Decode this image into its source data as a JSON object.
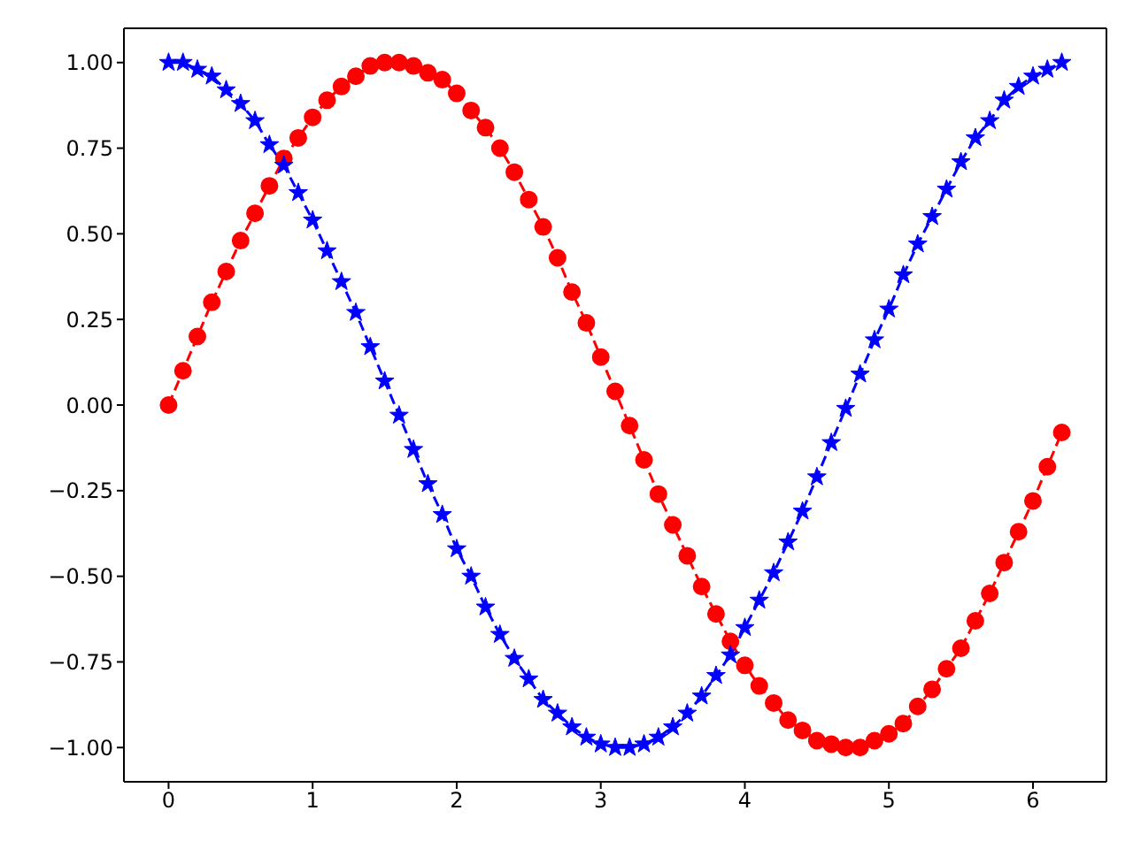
{
  "chart_data": {
    "type": "line",
    "x": [
      0,
      0.1,
      0.2,
      0.3,
      0.4,
      0.5,
      0.6,
      0.7,
      0.8,
      0.9,
      1.0,
      1.1,
      1.2,
      1.3,
      1.4,
      1.5,
      1.6,
      1.7,
      1.8,
      1.9,
      2.0,
      2.1,
      2.2,
      2.3,
      2.4,
      2.5,
      2.6,
      2.7,
      2.8,
      2.9,
      3.0,
      3.1,
      3.2,
      3.3,
      3.4,
      3.5,
      3.6,
      3.7,
      3.8,
      3.9,
      4.0,
      4.1,
      4.2,
      4.3,
      4.4,
      4.5,
      4.6,
      4.7,
      4.8,
      4.9,
      5.0,
      5.1,
      5.2,
      5.3,
      5.4,
      5.5,
      5.6,
      5.7,
      5.8,
      5.9,
      6.0,
      6.1,
      6.2
    ],
    "series": [
      {
        "color": "#ff0000",
        "marker": "circle",
        "line_style": "dashed",
        "values": [
          0,
          0.1,
          0.2,
          0.3,
          0.39,
          0.48,
          0.56,
          0.64,
          0.72,
          0.78,
          0.84,
          0.89,
          0.93,
          0.96,
          0.99,
          1.0,
          1.0,
          0.99,
          0.97,
          0.95,
          0.91,
          0.86,
          0.81,
          0.75,
          0.68,
          0.6,
          0.52,
          0.43,
          0.33,
          0.24,
          0.14,
          0.04,
          -0.06,
          -0.16,
          -0.26,
          -0.35,
          -0.44,
          -0.53,
          -0.61,
          -0.69,
          -0.76,
          -0.82,
          -0.87,
          -0.92,
          -0.95,
          -0.98,
          -0.99,
          -1.0,
          -1.0,
          -0.98,
          -0.96,
          -0.93,
          -0.88,
          -0.83,
          -0.77,
          -0.71,
          -0.63,
          -0.55,
          -0.46,
          -0.37,
          -0.28,
          -0.18,
          -0.08
        ]
      },
      {
        "color": "#0000ff",
        "marker": "star",
        "line_style": "dashed",
        "values": [
          1.0,
          1.0,
          0.98,
          0.96,
          0.92,
          0.88,
          0.83,
          0.76,
          0.7,
          0.62,
          0.54,
          0.45,
          0.36,
          0.27,
          0.17,
          0.07,
          -0.03,
          -0.13,
          -0.23,
          -0.32,
          -0.42,
          -0.5,
          -0.59,
          -0.67,
          -0.74,
          -0.8,
          -0.86,
          -0.9,
          -0.94,
          -0.97,
          -0.99,
          -1.0,
          -1.0,
          -0.99,
          -0.97,
          -0.94,
          -0.9,
          -0.85,
          -0.79,
          -0.73,
          -0.65,
          -0.57,
          -0.49,
          -0.4,
          -0.31,
          -0.21,
          -0.11,
          -0.01,
          0.09,
          0.19,
          0.28,
          0.38,
          0.47,
          0.55,
          0.63,
          0.71,
          0.78,
          0.83,
          0.89,
          0.93,
          0.96,
          0.98,
          1.0
        ]
      }
    ],
    "xlim": [
      -0.31,
      6.51
    ],
    "xticks": [
      0,
      1,
      2,
      3,
      4,
      5,
      6
    ],
    "ylim": [
      -1.1,
      1.1
    ],
    "yticks": [
      {
        "value": -1,
        "label": "−1.00"
      },
      {
        "value": -0.75,
        "label": "−0.75"
      },
      {
        "value": -0.5,
        "label": "−0.50"
      },
      {
        "value": -0.25,
        "label": "−0.25"
      },
      {
        "value": 0,
        "label": "0.00"
      },
      {
        "value": 0.25,
        "label": "0.25"
      },
      {
        "value": 0.5,
        "label": "0.50"
      },
      {
        "value": 0.75,
        "label": "0.75"
      },
      {
        "value": 1,
        "label": "1.00"
      }
    ]
  }
}
